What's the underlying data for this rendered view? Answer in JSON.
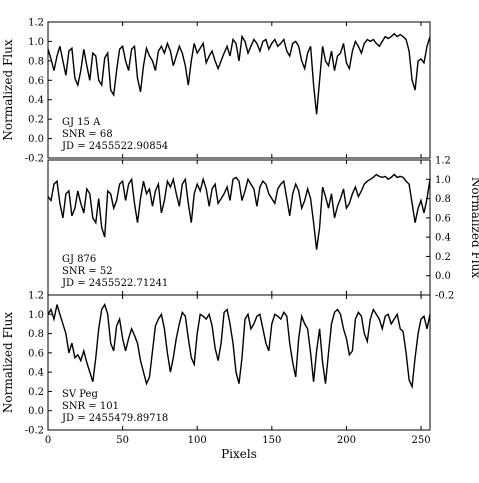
{
  "chart_data": {
    "type": "line",
    "xlabel": "Pixels",
    "xlim": [
      0,
      256
    ],
    "x_ticks": [
      0,
      50,
      100,
      150,
      200,
      250
    ],
    "panels": [
      {
        "ylabel": "Normalized Flux",
        "ylabel_side": "left",
        "ylim": [
          -0.2,
          1.2
        ],
        "y_ticks": [
          "-0.2",
          "0.0",
          "0.2",
          "0.4",
          "0.6",
          "0.8",
          "1.0",
          "1.2"
        ],
        "annotation": [
          "GJ 15 A",
          "SNR = 68",
          "JD = 2455522.90854"
        ],
        "series": [
          {
            "x": [
              0,
              2,
              4,
              6,
              8,
              10,
              12,
              14,
              16,
              18,
              20,
              22,
              24,
              26,
              28,
              30,
              32,
              34,
              36,
              38,
              40,
              42,
              44,
              46,
              48,
              50,
              52,
              54,
              56,
              58,
              60,
              62,
              64,
              66,
              68,
              70,
              72,
              74,
              76,
              78,
              80,
              82,
              84,
              86,
              88,
              90,
              92,
              94,
              96,
              98,
              100,
              102,
              104,
              106,
              108,
              110,
              112,
              114,
              116,
              118,
              120,
              122,
              124,
              126,
              128,
              130,
              132,
              134,
              136,
              138,
              140,
              142,
              144,
              146,
              148,
              150,
              152,
              154,
              156,
              158,
              160,
              162,
              164,
              166,
              168,
              170,
              172,
              174,
              176,
              178,
              180,
              182,
              184,
              186,
              188,
              190,
              192,
              194,
              196,
              198,
              200,
              202,
              204,
              206,
              208,
              210,
              212,
              214,
              216,
              218,
              220,
              222,
              224,
              226,
              228,
              230,
              232,
              234,
              236,
              238,
              240,
              242,
              244,
              246,
              248,
              250,
              252,
              254,
              256
            ],
            "y": [
              0.92,
              0.82,
              0.7,
              0.85,
              0.95,
              0.8,
              0.65,
              0.9,
              0.93,
              0.62,
              0.55,
              0.7,
              0.92,
              0.75,
              0.6,
              0.88,
              0.85,
              0.6,
              0.55,
              0.83,
              0.88,
              0.5,
              0.45,
              0.7,
              0.92,
              0.95,
              0.8,
              0.7,
              0.92,
              0.95,
              0.62,
              0.48,
              0.75,
              0.93,
              0.85,
              0.8,
              0.7,
              0.9,
              0.95,
              0.88,
              0.98,
              0.9,
              0.75,
              0.85,
              0.95,
              0.88,
              0.75,
              0.55,
              0.8,
              0.98,
              0.88,
              0.93,
              0.98,
              0.78,
              0.85,
              0.9,
              0.8,
              0.72,
              0.8,
              0.88,
              0.95,
              0.85,
              1.02,
              0.98,
              0.8,
              1.05,
              1.0,
              0.88,
              0.95,
              1.02,
              0.98,
              0.9,
              1.0,
              1.02,
              0.92,
              0.98,
              1.02,
              0.95,
              0.98,
              1.02,
              0.9,
              0.85,
              0.98,
              1.0,
              0.95,
              0.8,
              0.72,
              0.88,
              0.95,
              0.55,
              0.25,
              0.6,
              0.95,
              0.8,
              0.75,
              0.9,
              0.7,
              0.85,
              0.88,
              0.98,
              0.78,
              0.72,
              0.9,
              1.0,
              0.95,
              0.88,
              0.98,
              1.02,
              1.0,
              1.02,
              0.98,
              0.95,
              1.0,
              1.05,
              1.03,
              1.05,
              1.08,
              1.05,
              1.07,
              1.05,
              1.02,
              0.9,
              0.6,
              0.5,
              0.8,
              0.82,
              0.78,
              0.95,
              1.05
            ]
          }
        ]
      },
      {
        "ylabel": "Normalized Flux",
        "ylabel_side": "right",
        "ylim": [
          -0.2,
          1.2
        ],
        "y_ticks": [
          "-0.2",
          "0.0",
          "0.2",
          "0.4",
          "0.6",
          "0.8",
          "1.0",
          "1.2"
        ],
        "annotation": [
          "GJ 876",
          "SNR = 52",
          "JD = 2455522.71241"
        ],
        "series": [
          {
            "x": [
              0,
              2,
              4,
              6,
              8,
              10,
              12,
              14,
              16,
              18,
              20,
              22,
              24,
              26,
              28,
              30,
              32,
              34,
              36,
              38,
              40,
              42,
              44,
              46,
              48,
              50,
              52,
              54,
              56,
              58,
              60,
              62,
              64,
              66,
              68,
              70,
              72,
              74,
              76,
              78,
              80,
              82,
              84,
              86,
              88,
              90,
              92,
              94,
              96,
              98,
              100,
              102,
              104,
              106,
              108,
              110,
              112,
              114,
              116,
              118,
              120,
              122,
              124,
              126,
              128,
              130,
              132,
              134,
              136,
              138,
              140,
              142,
              144,
              146,
              148,
              150,
              152,
              154,
              156,
              158,
              160,
              162,
              164,
              166,
              168,
              170,
              172,
              174,
              176,
              178,
              180,
              182,
              184,
              186,
              188,
              190,
              192,
              194,
              196,
              198,
              200,
              202,
              204,
              206,
              208,
              210,
              212,
              214,
              216,
              218,
              220,
              222,
              224,
              226,
              228,
              230,
              232,
              234,
              236,
              238,
              240,
              242,
              244,
              246,
              248,
              250,
              252,
              254,
              256
            ],
            "y": [
              0.82,
              0.78,
              0.95,
              0.98,
              0.75,
              0.6,
              0.85,
              0.88,
              0.62,
              0.7,
              0.88,
              0.75,
              0.65,
              0.9,
              0.85,
              0.6,
              0.55,
              0.8,
              0.5,
              0.4,
              0.88,
              0.85,
              0.7,
              0.78,
              0.95,
              0.98,
              0.78,
              0.95,
              1.0,
              0.75,
              0.55,
              0.8,
              0.98,
              0.85,
              0.9,
              0.72,
              0.88,
              0.95,
              0.65,
              0.78,
              0.98,
              0.92,
              1.0,
              0.85,
              0.72,
              0.95,
              1.0,
              0.75,
              0.55,
              0.85,
              0.95,
              0.88,
              1.0,
              0.9,
              0.72,
              0.9,
              0.95,
              0.75,
              0.8,
              0.85,
              0.92,
              0.78,
              1.0,
              1.02,
              0.98,
              0.78,
              0.88,
              1.0,
              0.95,
              0.9,
              0.72,
              0.92,
              0.98,
              0.95,
              0.85,
              0.8,
              0.75,
              0.9,
              0.95,
              0.98,
              0.8,
              0.62,
              0.85,
              0.95,
              0.88,
              0.7,
              0.78,
              0.9,
              0.8,
              0.55,
              0.27,
              0.5,
              0.92,
              0.82,
              0.7,
              0.85,
              0.6,
              0.72,
              0.8,
              0.9,
              0.7,
              0.75,
              0.85,
              0.92,
              0.82,
              0.88,
              0.95,
              0.98,
              1.0,
              1.02,
              1.05,
              1.03,
              1.02,
              1.03,
              1.0,
              1.02,
              1.05,
              1.02,
              1.03,
              1.02,
              0.98,
              0.95,
              0.75,
              0.55,
              0.7,
              0.78,
              0.65,
              0.8,
              1.0
            ]
          }
        ]
      },
      {
        "ylabel": "Normalized Flux",
        "ylabel_side": "left",
        "ylim": [
          -0.2,
          1.2
        ],
        "y_ticks": [
          "-0.2",
          "0.0",
          "0.2",
          "0.4",
          "0.6",
          "0.8",
          "1.0",
          "1.2"
        ],
        "annotation": [
          "SV Peg",
          "SNR = 101",
          "JD = 2455479.89718"
        ],
        "series": [
          {
            "x": [
              0,
              2,
              4,
              6,
              8,
              10,
              12,
              14,
              16,
              18,
              20,
              22,
              24,
              26,
              28,
              30,
              32,
              34,
              36,
              38,
              40,
              42,
              44,
              46,
              48,
              50,
              52,
              54,
              56,
              58,
              60,
              62,
              64,
              66,
              68,
              70,
              72,
              74,
              76,
              78,
              80,
              82,
              84,
              86,
              88,
              90,
              92,
              94,
              96,
              98,
              100,
              102,
              104,
              106,
              108,
              110,
              112,
              114,
              116,
              118,
              120,
              122,
              124,
              126,
              128,
              130,
              132,
              134,
              136,
              138,
              140,
              142,
              144,
              146,
              148,
              150,
              152,
              154,
              156,
              158,
              160,
              162,
              164,
              166,
              168,
              170,
              172,
              174,
              176,
              178,
              180,
              182,
              184,
              186,
              188,
              190,
              192,
              194,
              196,
              198,
              200,
              202,
              204,
              206,
              208,
              210,
              212,
              214,
              216,
              218,
              220,
              222,
              224,
              226,
              228,
              230,
              232,
              234,
              236,
              238,
              240,
              242,
              244,
              246,
              248,
              250,
              252,
              254,
              256
            ],
            "y": [
              1.0,
              1.05,
              0.95,
              1.1,
              1.0,
              0.9,
              0.8,
              0.6,
              0.7,
              0.55,
              0.58,
              0.52,
              0.62,
              0.5,
              0.4,
              0.3,
              0.55,
              0.85,
              1.05,
              1.1,
              1.0,
              0.7,
              0.62,
              0.88,
              0.95,
              0.75,
              0.62,
              0.75,
              0.85,
              0.78,
              0.7,
              0.52,
              0.4,
              0.28,
              0.35,
              0.62,
              0.88,
              0.95,
              1.0,
              0.85,
              0.6,
              0.4,
              0.55,
              0.75,
              0.9,
              1.02,
              0.98,
              0.75,
              0.55,
              0.48,
              0.8,
              1.0,
              0.98,
              0.95,
              1.0,
              0.88,
              0.65,
              0.52,
              0.7,
              1.02,
              1.05,
              0.9,
              0.7,
              0.4,
              0.28,
              0.55,
              0.95,
              1.0,
              0.85,
              0.9,
              0.98,
              1.0,
              0.85,
              0.7,
              0.62,
              0.9,
              1.0,
              0.98,
              0.95,
              1.02,
              0.98,
              0.7,
              0.5,
              0.35,
              0.75,
              0.98,
              0.9,
              0.85,
              0.6,
              0.3,
              0.62,
              0.85,
              0.5,
              0.28,
              0.6,
              0.9,
              1.02,
              1.05,
              1.0,
              0.85,
              0.75,
              0.58,
              0.62,
              0.95,
              1.02,
              0.98,
              0.8,
              0.72,
              0.95,
              1.05,
              1.0,
              0.95,
              0.85,
              0.98,
              1.0,
              0.9,
              0.95,
              1.0,
              0.85,
              0.82,
              0.6,
              0.32,
              0.25,
              0.55,
              0.8,
              0.95,
              0.98,
              0.85,
              1.0
            ]
          }
        ]
      }
    ]
  }
}
